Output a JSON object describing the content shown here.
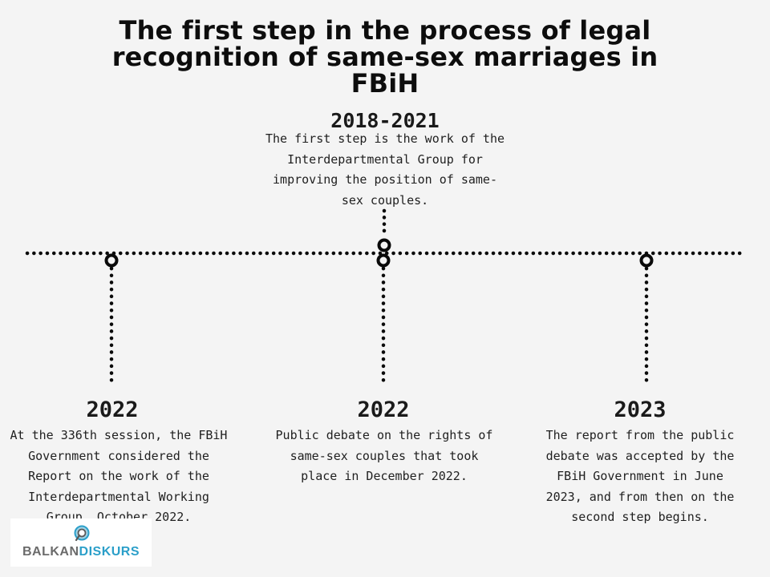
{
  "title": "The first step in the process of legal recognition of same-sex marriages in FBiH",
  "top_event": {
    "year": "2018-2021",
    "text": "The first step is the work of the Interdepartmental Group for improving the position of same-sex couples."
  },
  "events": [
    {
      "year": "2022",
      "text": "At the 336th session, the FBiH Government considered the Report on the work of the Interdepartmental Working Group, October 2022."
    },
    {
      "year": "2022",
      "text": "Public debate on the rights of same-sex couples that took place in December 2022."
    },
    {
      "year": "2023",
      "text": "The report from the public debate was accepted by the FBiH Government in June 2023, and from then on the second step begins."
    }
  ],
  "logo": {
    "part1": "BALKAN",
    "part2": "DISKURS",
    "icon": "search-chat-icon"
  },
  "colors": {
    "background": "#f4f4f4",
    "line": "#0a0a0a",
    "logo_grey": "#6b6b6b",
    "logo_blue": "#2b9fc9"
  }
}
